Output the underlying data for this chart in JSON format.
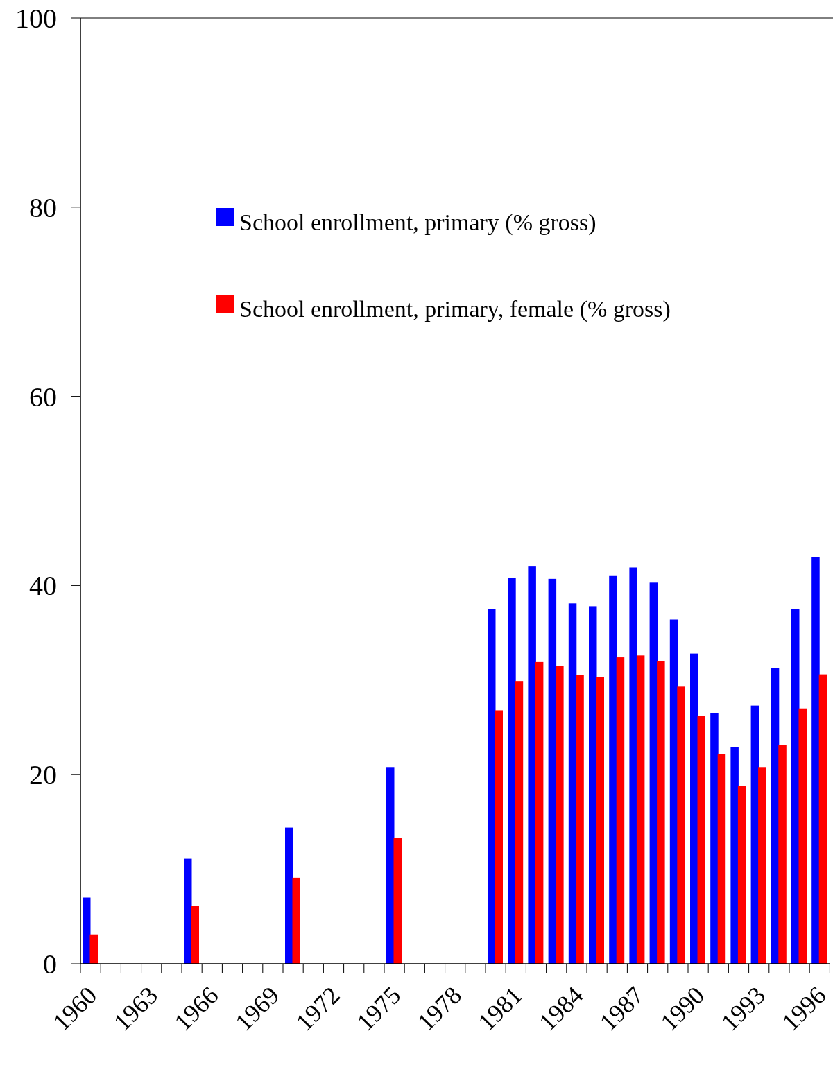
{
  "chart_data": {
    "type": "bar",
    "categories": [
      "1960",
      null,
      null,
      "1963",
      null,
      null,
      "1966",
      null,
      null,
      "1969",
      null,
      null,
      "1972",
      null,
      null,
      "1975",
      null,
      null,
      "1978",
      null,
      null,
      "1981",
      null,
      null,
      "1984",
      null,
      null,
      "1987",
      null,
      null,
      "1990",
      null,
      null,
      "1993",
      null,
      null,
      "1996"
    ],
    "series": [
      {
        "name": "School enrollment, primary (% gross)",
        "color": "#0000ff",
        "values": [
          7.0,
          null,
          null,
          null,
          null,
          11.1,
          null,
          null,
          null,
          null,
          14.4,
          null,
          null,
          null,
          null,
          20.8,
          null,
          null,
          null,
          null,
          37.5,
          40.8,
          42.0,
          40.7,
          38.1,
          37.8,
          41.0,
          41.9,
          40.3,
          36.4,
          32.8,
          26.5,
          22.9,
          27.3,
          31.3,
          37.5,
          43.0
        ]
      },
      {
        "name": "School enrollment, primary, female (% gross)",
        "color": "#ff0000",
        "values": [
          3.1,
          null,
          null,
          null,
          null,
          6.1,
          null,
          null,
          null,
          null,
          9.1,
          null,
          null,
          null,
          null,
          13.3,
          null,
          null,
          null,
          null,
          26.8,
          29.9,
          31.9,
          31.5,
          30.5,
          30.3,
          32.4,
          32.6,
          32.0,
          29.3,
          26.2,
          22.2,
          18.8,
          20.8,
          23.1,
          27.0,
          30.6
        ]
      }
    ],
    "ylim": [
      0,
      100
    ],
    "yticks": [
      0,
      20,
      40,
      60,
      80,
      100
    ],
    "grid": false,
    "legend": "top"
  }
}
